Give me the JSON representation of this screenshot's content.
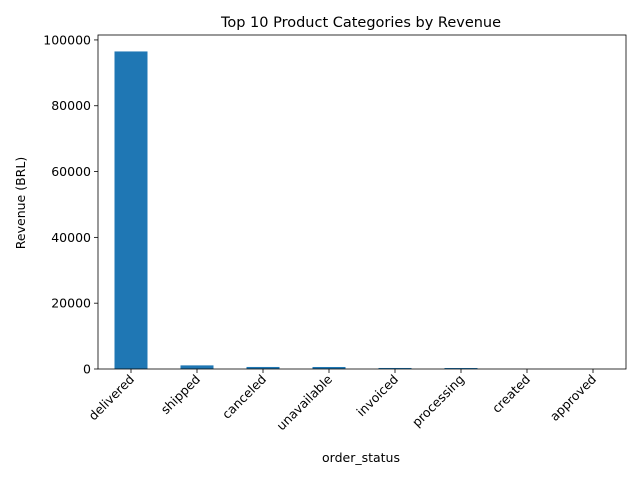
{
  "chart_data": {
    "type": "bar",
    "title": "Top 10 Product Categories by Revenue",
    "xlabel": "order_status",
    "ylabel": "Revenue (BRL)",
    "categories": [
      "delivered",
      "shipped",
      "canceled",
      "unavailable",
      "invoiced",
      "processing",
      "created",
      "approved"
    ],
    "values": [
      96500,
      1100,
      620,
      610,
      310,
      300,
      5,
      2
    ],
    "ylim": [
      0,
      101500
    ],
    "yticks": [
      0,
      20000,
      40000,
      60000,
      80000,
      100000
    ],
    "ytick_labels": [
      "0",
      "20000",
      "40000",
      "60000",
      "80000",
      "100000"
    ],
    "grid": false,
    "legend": "none",
    "bar_color": "#1f77b4"
  }
}
